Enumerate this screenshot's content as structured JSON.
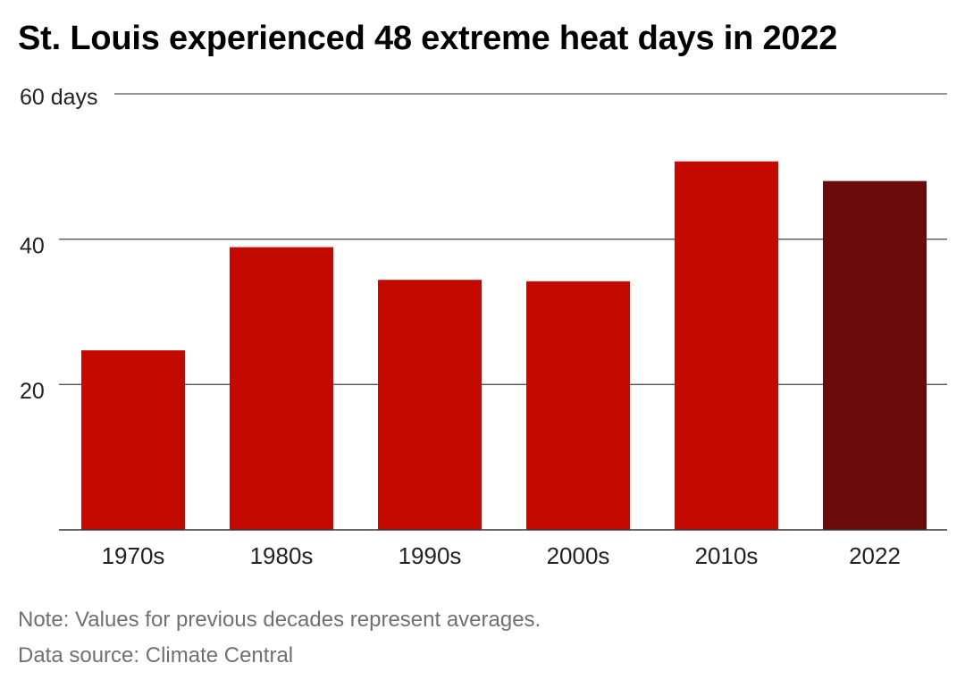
{
  "chart_data": {
    "type": "bar",
    "title": "St. Louis experienced 48 extreme heat days in 2022",
    "categories": [
      "1970s",
      "1980s",
      "1990s",
      "2000s",
      "2010s",
      "2022"
    ],
    "values": [
      24.7,
      38.9,
      34.4,
      34.2,
      50.7,
      48
    ],
    "ylim": [
      0,
      60
    ],
    "yticks": [
      20,
      40,
      60
    ],
    "ytick_labels": [
      "20",
      "40",
      "60 days"
    ],
    "grid": true,
    "colors": {
      "bar": "#c30a00",
      "highlight": "#6b0a0a",
      "highlight_category": "2022",
      "gridline": "#555555",
      "axis": "#333333"
    }
  },
  "footer": {
    "note": "Note: Values for previous decades represent averages.",
    "source": "Data source: Climate Central"
  }
}
